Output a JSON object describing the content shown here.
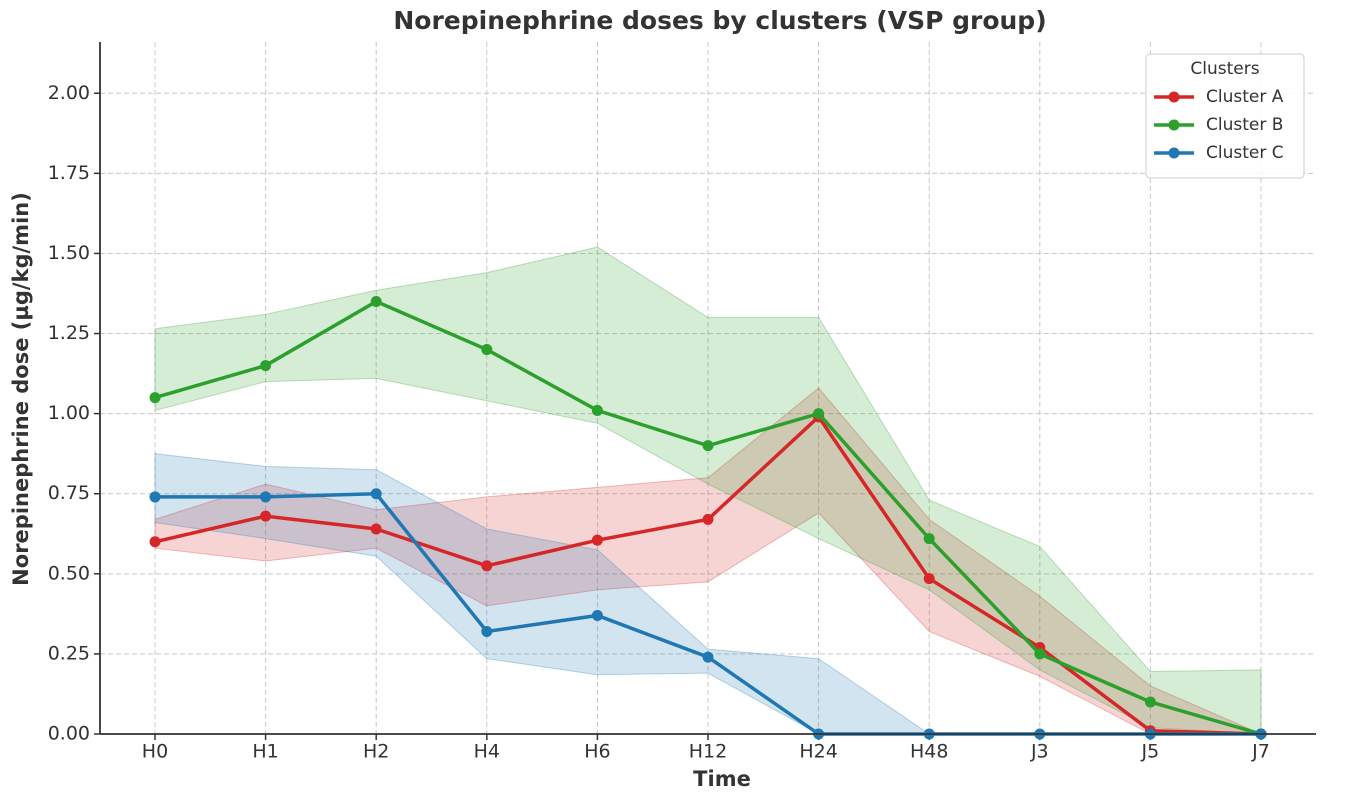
{
  "chart_data": {
    "type": "line",
    "title": "Norepinephrine doses by clusters (VSP group)",
    "x_label": "Time",
    "y_label": "Norepinephrine dose (µg/kg/min)",
    "legend_title": "Clusters",
    "legend": "upper right",
    "grid": true,
    "categories": [
      "H0",
      "H1",
      "H2",
      "H4",
      "H6",
      "H12",
      "H24",
      "H48",
      "J3",
      "J5",
      "J7"
    ],
    "ylim": [
      0,
      2.16
    ],
    "yticks": [
      {
        "value": 0,
        "label": "0.00"
      },
      {
        "value": 0.25,
        "label": "0.25"
      },
      {
        "value": 0.5,
        "label": "0.50"
      },
      {
        "value": 0.75,
        "label": "0.75"
      },
      {
        "value": 1,
        "label": "1.00"
      },
      {
        "value": 1.25,
        "label": "1.25"
      },
      {
        "value": 1.5,
        "label": "1.50"
      },
      {
        "value": 1.75,
        "label": "1.75"
      },
      {
        "value": 2,
        "label": "2.00"
      }
    ],
    "series": [
      {
        "name": "Cluster A",
        "color": "#d62728",
        "values": [
          0.6,
          0.68,
          0.64,
          0.525,
          0.605,
          0.67,
          0.99,
          0.485,
          0.27,
          0.01,
          0
        ],
        "lower": [
          0.58,
          0.54,
          0.58,
          0.4,
          0.45,
          0.475,
          0.69,
          0.32,
          0.18,
          0,
          0
        ],
        "upper": [
          0.67,
          0.78,
          0.7,
          0.74,
          0.77,
          0.8,
          1.08,
          0.67,
          0.43,
          0.15,
          0
        ]
      },
      {
        "name": "Cluster B",
        "color": "#2ca02c",
        "values": [
          1.05,
          1.15,
          1.35,
          1.2,
          1.01,
          0.9,
          1,
          0.61,
          0.25,
          0.1,
          0
        ],
        "lower": [
          1.01,
          1.1,
          1.11,
          1.04,
          0.97,
          0.78,
          0.61,
          0.45,
          0.2,
          0.02,
          0
        ],
        "upper": [
          1.265,
          1.31,
          1.385,
          1.44,
          1.52,
          1.3,
          1.3,
          0.73,
          0.585,
          0.195,
          0.2
        ]
      },
      {
        "name": "Cluster C",
        "color": "#1f77b4",
        "values": [
          0.74,
          0.74,
          0.75,
          0.32,
          0.37,
          0.24,
          0,
          0,
          0,
          0,
          0
        ],
        "lower": [
          0.66,
          0.61,
          0.555,
          0.235,
          0.185,
          0.19,
          0,
          0,
          0,
          0,
          0
        ],
        "upper": [
          0.875,
          0.835,
          0.825,
          0.64,
          0.575,
          0.265,
          0.235,
          0,
          0,
          0,
          0
        ]
      }
    ]
  }
}
